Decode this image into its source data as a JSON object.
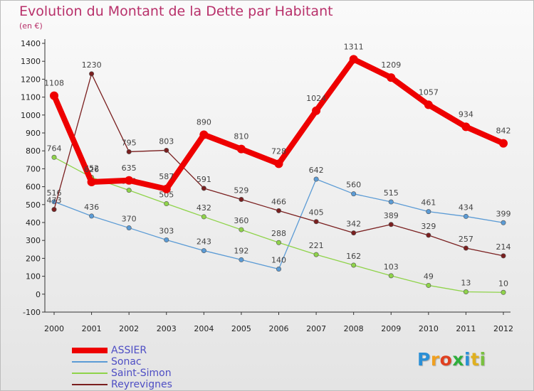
{
  "title": "Evolution du Montant de la Dette par Habitant",
  "unit": "(en €)",
  "logo": {
    "text": "Proxiti"
  },
  "chart_data": {
    "type": "line",
    "x": [
      "2000",
      "2001",
      "2002",
      "2003",
      "2004",
      "2005",
      "2006",
      "2007",
      "2008",
      "2009",
      "2010",
      "2011",
      "2012"
    ],
    "ylim": [
      -100,
      1400
    ],
    "yticks": [
      -100,
      0,
      100,
      200,
      300,
      400,
      500,
      600,
      700,
      800,
      900,
      1000,
      1100,
      1200,
      1300,
      1400
    ],
    "grid": false,
    "legend_position": "bottom-left",
    "series": [
      {
        "name": "ASSIER",
        "color": "#ee0000",
        "values": [
          1108,
          626,
          635,
          587,
          890,
          810,
          728,
          1024,
          1311,
          1209,
          1057,
          934,
          842
        ]
      },
      {
        "name": "Sonac",
        "color": "#5b9bd5",
        "values": [
          516,
          436,
          370,
          303,
          243,
          192,
          140,
          642,
          560,
          515,
          461,
          434,
          399
        ]
      },
      {
        "name": "Saint-Simon",
        "color": "#8fd34a",
        "values": [
          764,
          652,
          580,
          505,
          432,
          360,
          288,
          221,
          162,
          103,
          49,
          13,
          10
        ]
      },
      {
        "name": "Reyrevignes",
        "color": "#7a1f1f",
        "values": [
          473,
          1230,
          795,
          803,
          591,
          529,
          466,
          405,
          342,
          389,
          329,
          257,
          214
        ]
      }
    ]
  }
}
